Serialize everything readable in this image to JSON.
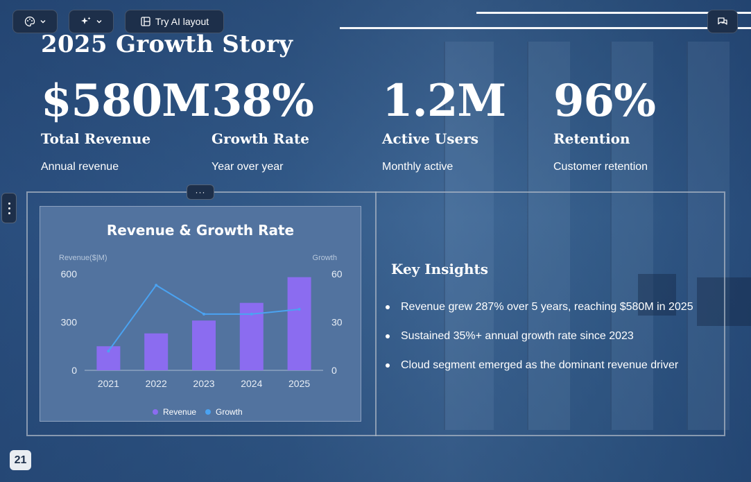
{
  "toolbar": {
    "theme_icon": "palette-icon",
    "ai_icon": "sparkles-icon",
    "layout_icon": "layout-icon",
    "try_ai_label": "Try AI layout",
    "comments_icon": "comments-icon"
  },
  "slide": {
    "title": "2025 Growth Story",
    "stats": [
      {
        "value": "$580M",
        "label": "Total Revenue",
        "sub": "Annual revenue"
      },
      {
        "value": "38%",
        "label": "Growth Rate",
        "sub": "Year over year"
      },
      {
        "value": "1.2M",
        "label": "Active Users",
        "sub": "Monthly active"
      },
      {
        "value": "96%",
        "label": "Retention",
        "sub": "Customer retention"
      }
    ],
    "insights": {
      "title": "Key Insights",
      "items": [
        "Revenue grew 287% over 5 years, reaching $580M in 2025",
        "Sustained 35%+ annual growth rate since 2023",
        "Cloud segment emerged as the dominant revenue driver"
      ]
    },
    "page_number": "21",
    "handle_dots": "···"
  },
  "colors": {
    "revenue": "#8b6cf0",
    "growth": "#4aa3f2",
    "toolbar_bg": "#1d2f4a"
  },
  "chart_data": {
    "type": "bar",
    "title": "Revenue & Growth Rate",
    "categories": [
      "2021",
      "2022",
      "2023",
      "2024",
      "2025"
    ],
    "y_left_label": "Revenue($|M)",
    "y_right_label": "Growth",
    "y_left_ticks": [
      "0",
      "300",
      "600"
    ],
    "y_right_ticks": [
      "0",
      "30",
      "60"
    ],
    "ylim_left": [
      0,
      600
    ],
    "ylim_right": [
      0,
      60
    ],
    "series": [
      {
        "name": "Revenue",
        "type": "bar",
        "axis": "left",
        "values": [
          150,
          230,
          310,
          420,
          580
        ]
      },
      {
        "name": "Growth",
        "type": "line",
        "axis": "right",
        "values": [
          12,
          53,
          35,
          35,
          38
        ]
      }
    ],
    "legend": "bottom"
  }
}
